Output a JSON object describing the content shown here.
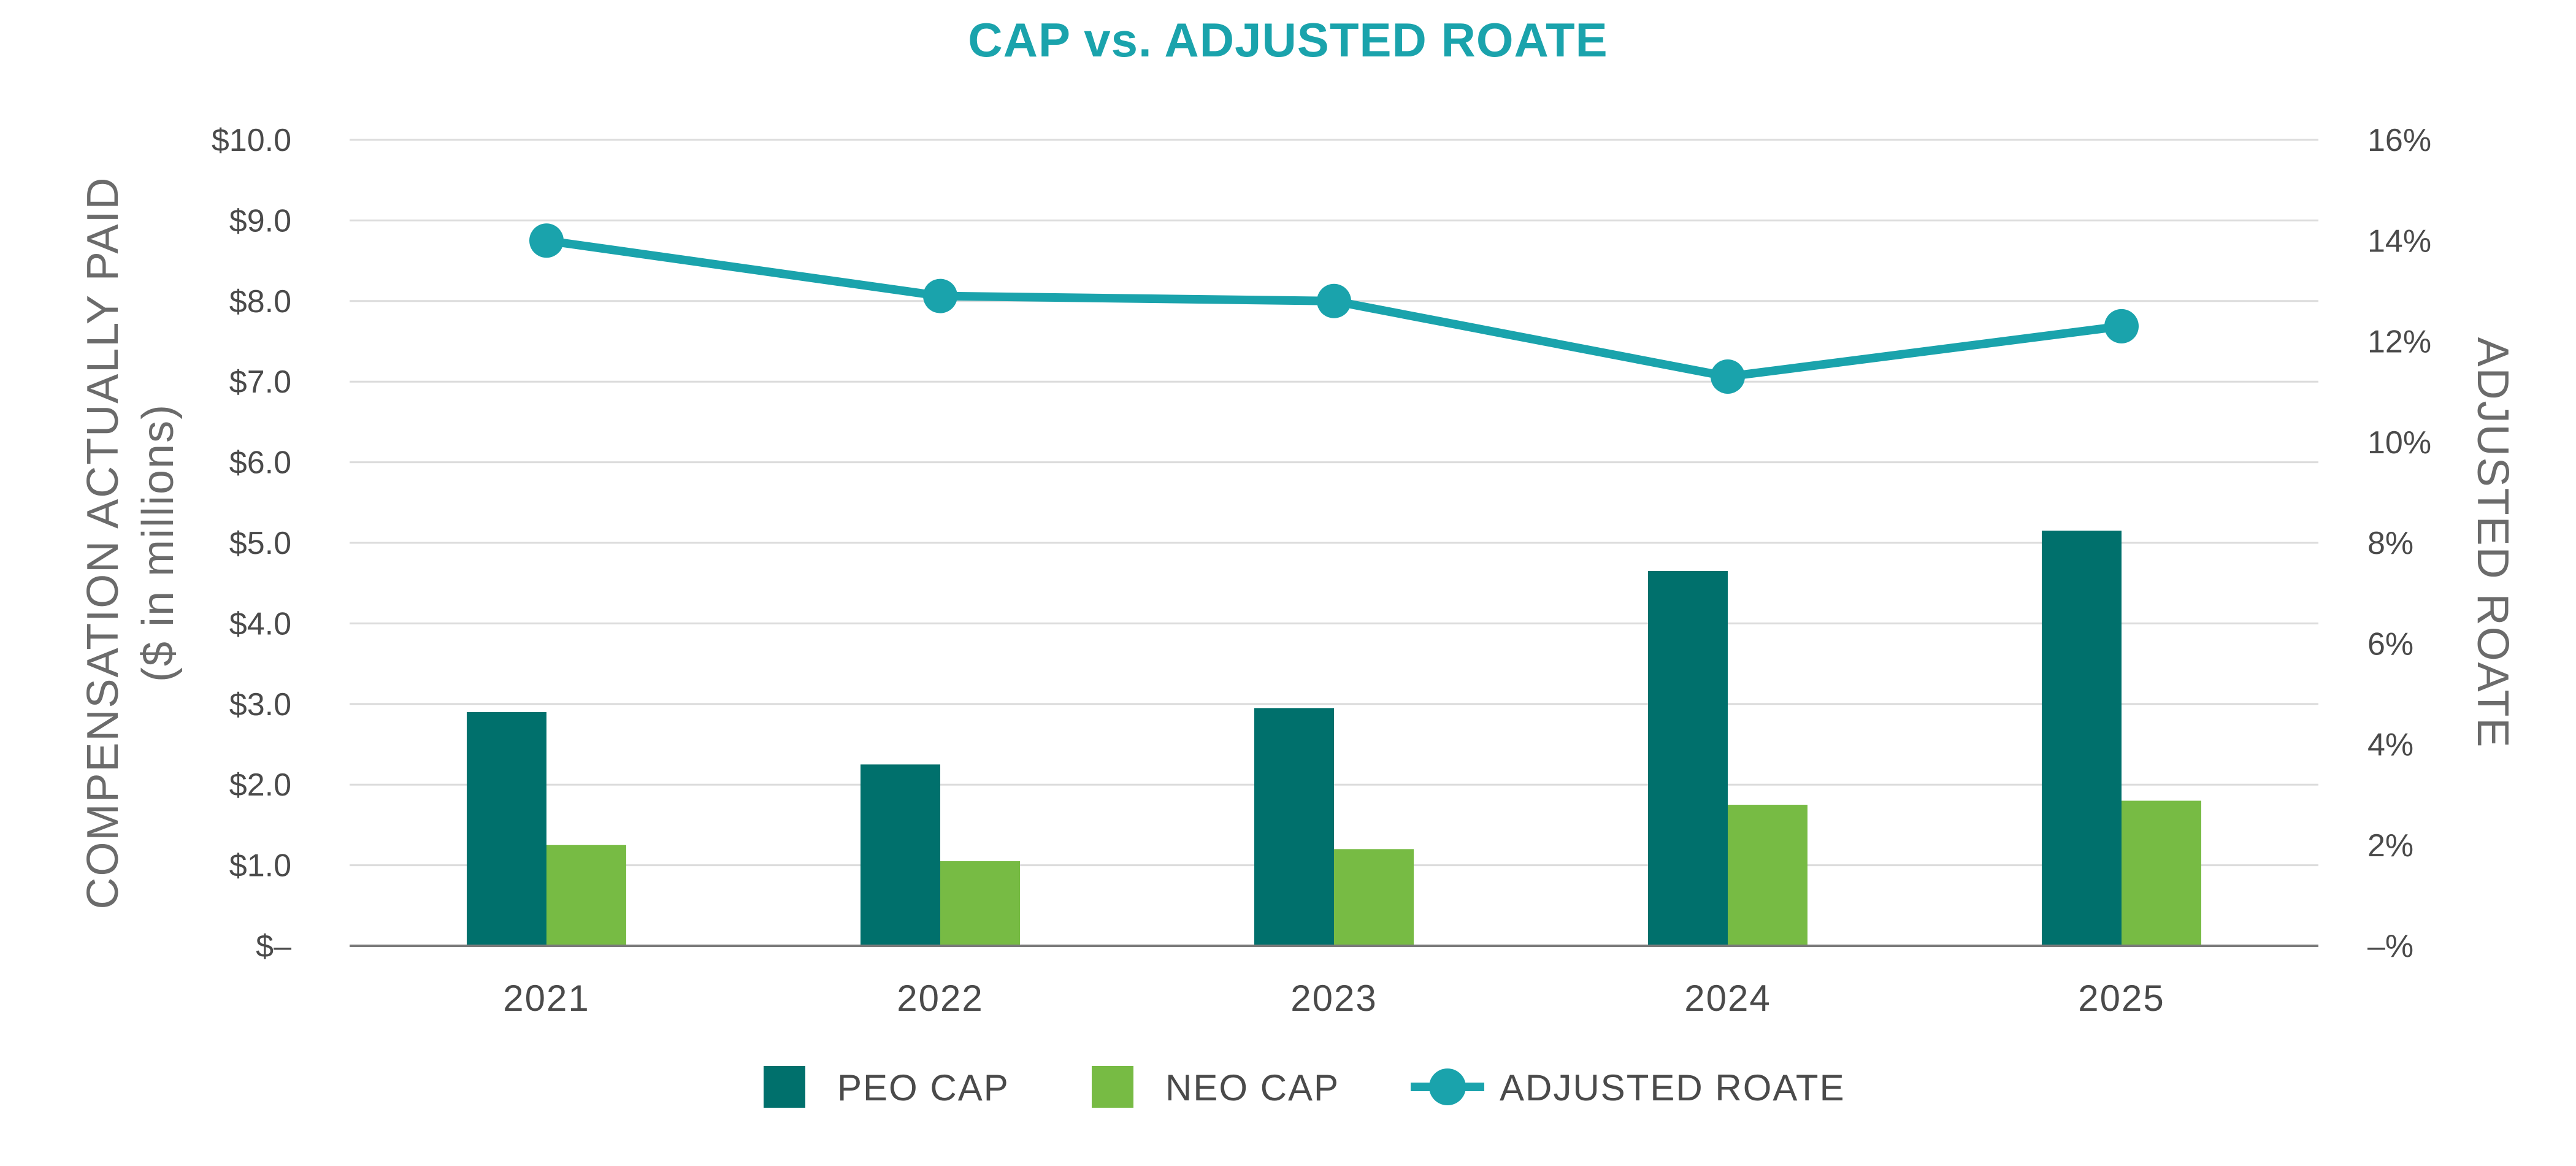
{
  "chart_data": {
    "type": "bar",
    "title": "CAP vs. ADJUSTED ROATE",
    "categories": [
      "2021",
      "2022",
      "2023",
      "2024",
      "2025"
    ],
    "series": [
      {
        "name": "PEO CAP",
        "type": "bar",
        "axis": "left",
        "color": "#00706c",
        "values": [
          2.9,
          2.25,
          2.95,
          4.65,
          5.15
        ]
      },
      {
        "name": "NEO CAP",
        "type": "bar",
        "axis": "left",
        "color": "#77bb44",
        "values": [
          1.25,
          1.05,
          1.2,
          1.75,
          1.8
        ]
      },
      {
        "name": "ADJUSTED ROATE",
        "type": "line",
        "axis": "right",
        "color": "#1aa3ac",
        "values": [
          14.0,
          12.9,
          12.8,
          11.3,
          12.3
        ]
      }
    ],
    "y_left": {
      "label_line1": "COMPENSATION ACTUALLY PAID",
      "label_line2": "($ in millions)",
      "ylim": [
        0,
        10
      ],
      "tick_values": [
        0,
        1,
        2,
        3,
        4,
        5,
        6,
        7,
        8,
        9,
        10
      ],
      "tick_labels": [
        "$–",
        "$1.0",
        "$2.0",
        "$3.0",
        "$4.0",
        "$5.0",
        "$6.0",
        "$7.0",
        "$8.0",
        "$9.0",
        "$10.0"
      ]
    },
    "y_right": {
      "label": "ADJUSTED ROATE",
      "ylim": [
        0,
        16
      ],
      "tick_values": [
        0,
        2,
        4,
        6,
        8,
        10,
        12,
        14,
        16
      ],
      "tick_labels": [
        "–%",
        "2%",
        "4%",
        "6%",
        "8%",
        "10%",
        "12%",
        "14%",
        "16%"
      ]
    },
    "grid": true,
    "legend_position": "bottom-center",
    "colors": {
      "title": "#1aa3ac",
      "grid": "#dcdcdc",
      "axis": "#7a7a7a",
      "text": "#4a4a4a"
    }
  }
}
